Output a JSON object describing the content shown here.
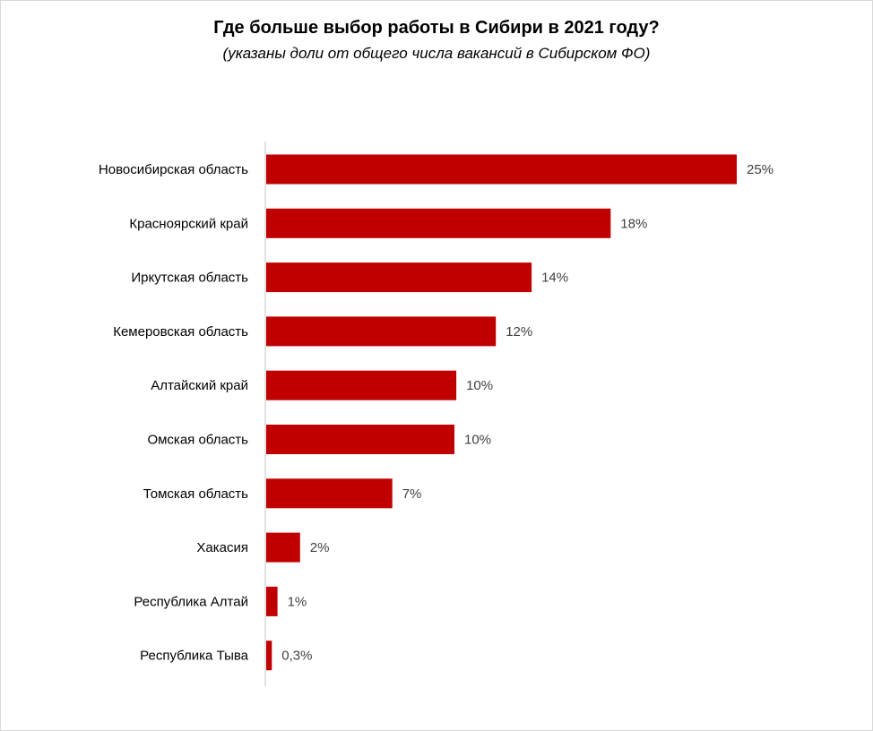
{
  "chart_data": {
    "type": "bar",
    "orientation": "horizontal",
    "title": "Где больше выбор работы в Сибири в 2021 году?",
    "subtitle": "(указаны доли от общего числа вакансий в Сибирском ФО)",
    "categories": [
      "Новосибирская область",
      "Красноярский край",
      "Иркутская область",
      "Кемеровская область",
      "Алтайский край",
      "Омская область",
      "Томская область",
      "Хакасия",
      "Республика Алтай",
      "Республика Тыва"
    ],
    "values": [
      25,
      18,
      14,
      12,
      10,
      10,
      7,
      2,
      1,
      0.3
    ],
    "value_labels": [
      "25%",
      "18%",
      "14%",
      "12%",
      "10%",
      "10%",
      "7%",
      "2%",
      "1%",
      "0,3%"
    ],
    "bar_values_precise": [
      25,
      18.3,
      14.1,
      12.2,
      10.1,
      10.0,
      6.7,
      1.8,
      0.6,
      0.3
    ],
    "xlim": [
      0,
      25
    ],
    "xlabel": "",
    "ylabel": "",
    "grid": false,
    "legend": "none",
    "colors": {
      "bar": "#c00000",
      "axis": "#d9d9d9",
      "value_label": "#404040"
    }
  }
}
